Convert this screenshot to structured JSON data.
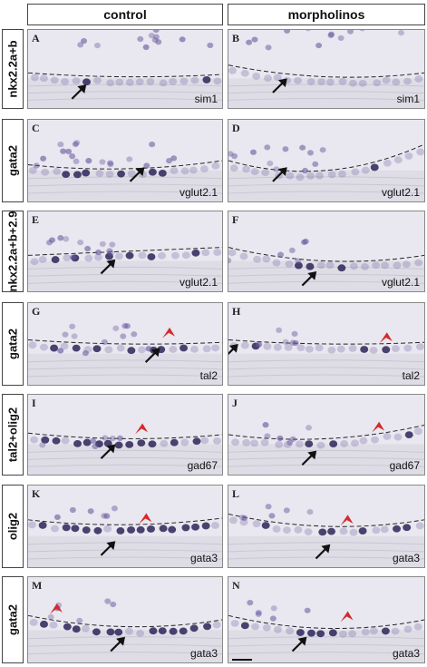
{
  "columns": [
    "control",
    "morpholinos"
  ],
  "rows": [
    {
      "label": "nkx2.2a+b",
      "left": {
        "letter": "A",
        "gene": "sim1"
      },
      "right": {
        "letter": "B",
        "gene": "sim1"
      }
    },
    {
      "label": "gata2",
      "left": {
        "letter": "C",
        "gene": "vglut2.1"
      },
      "right": {
        "letter": "D",
        "gene": "vglut2.1"
      }
    },
    {
      "label": "nkx2.2a+b+2.9",
      "left": {
        "letter": "E",
        "gene": "vglut2.1"
      },
      "right": {
        "letter": "F",
        "gene": "vglut2.1"
      }
    },
    {
      "label": "gata2",
      "left": {
        "letter": "G",
        "gene": "tal2"
      },
      "right": {
        "letter": "H",
        "gene": "tal2"
      }
    },
    {
      "label": "tal2+olig2",
      "left": {
        "letter": "I",
        "gene": "gad67"
      },
      "right": {
        "letter": "J",
        "gene": "gad67"
      }
    },
    {
      "label": "olig2",
      "left": {
        "letter": "K",
        "gene": "gata3"
      },
      "right": {
        "letter": "L",
        "gene": "gata3"
      }
    },
    {
      "label": "gata2",
      "left": {
        "letter": "M",
        "gene": "gata3"
      },
      "right": {
        "letter": "N",
        "gene": "gata3"
      }
    }
  ],
  "colors": {
    "background": "#e9e7ef",
    "cell_stain": "#6a5a9e",
    "dark_stain": "#2c2458",
    "arrow_black": "#111111",
    "arrowhead_red": "#d42a2a"
  }
}
